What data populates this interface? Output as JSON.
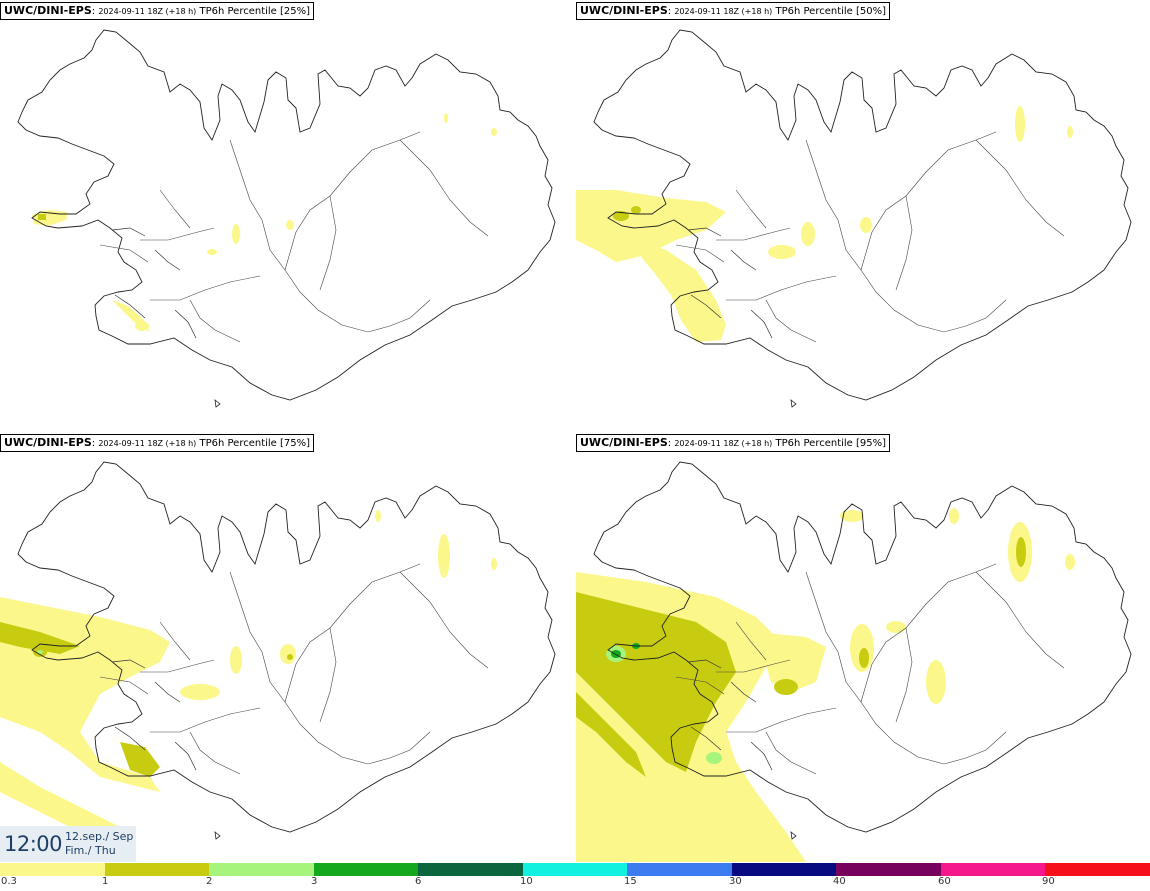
{
  "panels": [
    {
      "model": "UWC/DINI-EPS",
      "run": "2024-09-11 18Z (+18 h)",
      "param": "TP6h Percentile [25%]"
    },
    {
      "model": "UWC/DINI-EPS",
      "run": "2024-09-11 18Z (+18 h)",
      "param": "TP6h Percentile [50%]"
    },
    {
      "model": "UWC/DINI-EPS",
      "run": "2024-09-11 18Z (+18 h)",
      "param": "TP6h Percentile [75%]"
    },
    {
      "model": "UWC/DINI-EPS",
      "run": "2024-09-11 18Z (+18 h)",
      "param": "TP6h Percentile [95%]"
    }
  ],
  "valid_time": {
    "time": "12:00",
    "date_line1": "12.sep./ Sep",
    "date_line2": "Fim./ Thu"
  },
  "legend": {
    "labels": [
      "0.3",
      "1",
      "2",
      "3",
      "6",
      "10",
      "15",
      "30",
      "40",
      "60",
      "90"
    ],
    "colors": [
      "#fbf78a",
      "#c8cc10",
      "#a6f47c",
      "#14a81e",
      "#0b6640",
      "#12f0e0",
      "#3c7cf0",
      "#070a80",
      "#76025e",
      "#f5178c",
      "#f5101a"
    ]
  },
  "map_colors": {
    "level1": "#fbf78a",
    "level2": "#c8cc10",
    "level3": "#a6f47c",
    "level4": "#14a81e",
    "coast": "#222222"
  }
}
